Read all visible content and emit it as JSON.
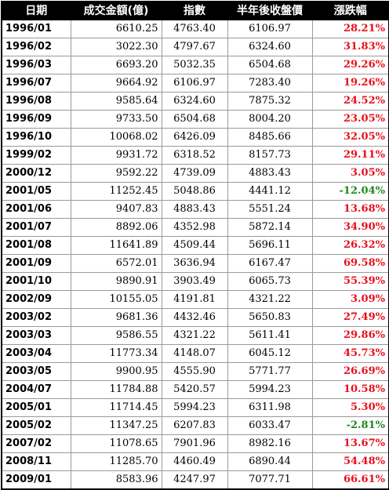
{
  "table": {
    "headers": [
      "日期",
      "成交金額(億)",
      "指數",
      "半年後收盤價",
      "漲跌幅"
    ],
    "rows": [
      {
        "date": "1996/01",
        "amount": "6610.25",
        "index": "4763.40",
        "half_year_close": "6106.97",
        "change": "28.21%"
      },
      {
        "date": "1996/02",
        "amount": "3022.30",
        "index": "4797.67",
        "half_year_close": "6324.60",
        "change": "31.83%"
      },
      {
        "date": "1996/03",
        "amount": "6693.20",
        "index": "5032.35",
        "half_year_close": "6504.68",
        "change": "29.26%"
      },
      {
        "date": "1996/07",
        "amount": "9664.92",
        "index": "6106.97",
        "half_year_close": "7283.40",
        "change": "19.26%"
      },
      {
        "date": "1996/08",
        "amount": "9585.64",
        "index": "6324.60",
        "half_year_close": "7875.32",
        "change": "24.52%"
      },
      {
        "date": "1996/09",
        "amount": "9733.50",
        "index": "6504.68",
        "half_year_close": "8004.20",
        "change": "23.05%"
      },
      {
        "date": "1996/10",
        "amount": "10068.02",
        "index": "6426.09",
        "half_year_close": "8485.66",
        "change": "32.05%"
      },
      {
        "date": "1999/02",
        "amount": "9931.72",
        "index": "6318.52",
        "half_year_close": "8157.73",
        "change": "29.11%"
      },
      {
        "date": "2000/12",
        "amount": "9592.22",
        "index": "4739.09",
        "half_year_close": "4883.43",
        "change": "3.05%"
      },
      {
        "date": "2001/05",
        "amount": "11252.45",
        "index": "5048.86",
        "half_year_close": "4441.12",
        "change": "-12.04%"
      },
      {
        "date": "2001/06",
        "amount": "9407.83",
        "index": "4883.43",
        "half_year_close": "5551.24",
        "change": "13.68%"
      },
      {
        "date": "2001/07",
        "amount": "8892.06",
        "index": "4352.98",
        "half_year_close": "5872.14",
        "change": "34.90%"
      },
      {
        "date": "2001/08",
        "amount": "11641.89",
        "index": "4509.44",
        "half_year_close": "5696.11",
        "change": "26.32%"
      },
      {
        "date": "2001/09",
        "amount": "6572.01",
        "index": "3636.94",
        "half_year_close": "6167.47",
        "change": "69.58%"
      },
      {
        "date": "2001/10",
        "amount": "9890.91",
        "index": "3903.49",
        "half_year_close": "6065.73",
        "change": "55.39%"
      },
      {
        "date": "2002/09",
        "amount": "10155.05",
        "index": "4191.81",
        "half_year_close": "4321.22",
        "change": "3.09%"
      },
      {
        "date": "2003/02",
        "amount": "9681.36",
        "index": "4432.46",
        "half_year_close": "5650.83",
        "change": "27.49%"
      },
      {
        "date": "2003/03",
        "amount": "9586.55",
        "index": "4321.22",
        "half_year_close": "5611.41",
        "change": "29.86%"
      },
      {
        "date": "2003/04",
        "amount": "11773.34",
        "index": "4148.07",
        "half_year_close": "6045.12",
        "change": "45.73%"
      },
      {
        "date": "2003/05",
        "amount": "9900.95",
        "index": "4555.90",
        "half_year_close": "5771.77",
        "change": "26.69%"
      },
      {
        "date": "2004/07",
        "amount": "11784.88",
        "index": "5420.57",
        "half_year_close": "5994.23",
        "change": "10.58%"
      },
      {
        "date": "2005/01",
        "amount": "11714.45",
        "index": "5994.23",
        "half_year_close": "6311.98",
        "change": "5.30%"
      },
      {
        "date": "2005/02",
        "amount": "11347.25",
        "index": "6207.83",
        "half_year_close": "6033.47",
        "change": "-2.81%"
      },
      {
        "date": "2007/02",
        "amount": "11078.65",
        "index": "7901.96",
        "half_year_close": "8982.16",
        "change": "13.67%"
      },
      {
        "date": "2008/11",
        "amount": "11285.70",
        "index": "4460.49",
        "half_year_close": "6890.44",
        "change": "54.48%"
      },
      {
        "date": "2009/01",
        "amount": "8583.96",
        "index": "4247.97",
        "half_year_close": "7077.71",
        "change": "66.61%"
      }
    ]
  },
  "colors": {
    "header_bg": "#000000",
    "header_text": "#ffffff",
    "positive": "#e8101c",
    "negative": "#1f8a1f"
  }
}
